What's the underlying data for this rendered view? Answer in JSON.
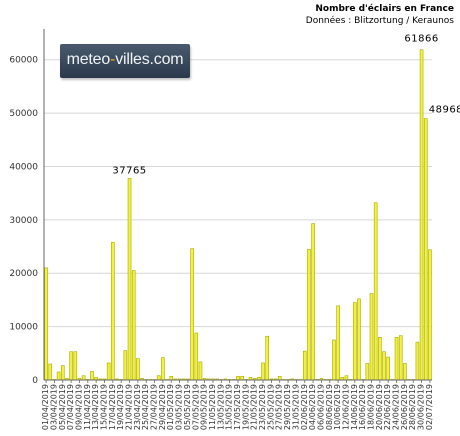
{
  "title": "Nombre  d'éclairs  en France",
  "subtitle": "Données : Blitzortung / Keraunos",
  "logo": {
    "prefix": "meteo",
    "accent": "-",
    "suffix": "villes.com"
  },
  "colors": {
    "bar_fill": "#f2f23a",
    "bar_stroke": "#a9a900",
    "grid": "#d8d8d8",
    "axis": "#666666"
  },
  "chart_data": {
    "type": "bar",
    "title": "Nombre  d'éclairs  en France",
    "subtitle": "Données : Blitzortung / Keraunos",
    "ylim": [
      0,
      65000
    ],
    "yticks": [
      0,
      10000,
      20000,
      30000,
      40000,
      50000,
      60000
    ],
    "grid": true,
    "tick_labels": [
      "01/04/2019",
      "03/04/2019",
      "05/04/2019",
      "07/04/2019",
      "09/04/2019",
      "11/04/2019",
      "13/04/2019",
      "15/04/2019",
      "17/04/2019",
      "19/04/2019",
      "21/04/2019",
      "23/04/2019",
      "25/04/2019",
      "27/04/2019",
      "29/04/2019",
      "01/05/2019",
      "03/05/2019",
      "05/05/2019",
      "07/05/2019",
      "09/05/2019",
      "11/05/2019",
      "13/05/2019",
      "15/05/2019",
      "17/05/2019",
      "19/05/2019",
      "21/05/2019",
      "23/05/2019",
      "25/05/2019",
      "27/05/2019",
      "29/05/2019",
      "31/05/2019",
      "02/06/2019",
      "04/06/2019",
      "06/06/2019",
      "08/06/2019",
      "10/06/2019",
      "12/06/2019",
      "14/06/2019",
      "16/06/2019",
      "18/06/2019",
      "20/06/2019",
      "22/06/2019",
      "24/06/2019",
      "26/06/2019",
      "28/06/2019",
      "30/06/2019",
      "02/07/2019"
    ],
    "values": [
      21000,
      3000,
      100,
      1500,
      2700,
      300,
      5300,
      5300,
      300,
      800,
      100,
      1600,
      500,
      200,
      200,
      3200,
      25800,
      200,
      100,
      5500,
      37765,
      20500,
      4000,
      300,
      100,
      100,
      100,
      800,
      4200,
      100,
      700,
      200,
      200,
      200,
      200,
      24600,
      8800,
      3400,
      300,
      200,
      200,
      200,
      100,
      200,
      100,
      100,
      700,
      700,
      100,
      500,
      300,
      500,
      3200,
      8200,
      200,
      200,
      700,
      100,
      100,
      200,
      100,
      100,
      5400,
      24500,
      29300,
      100,
      300,
      100,
      100,
      7500,
      13900,
      500,
      800,
      100,
      14500,
      15200,
      100,
      3100,
      16200,
      33200,
      8000,
      5300,
      4300,
      100,
      8000,
      8300,
      3100,
      100,
      100,
      7100,
      61866,
      48968,
      24400
    ],
    "data_labels": [
      {
        "index": 20,
        "text": "37765"
      },
      {
        "index": 90,
        "text": "61866"
      },
      {
        "index": 91,
        "text": "48968"
      }
    ]
  }
}
